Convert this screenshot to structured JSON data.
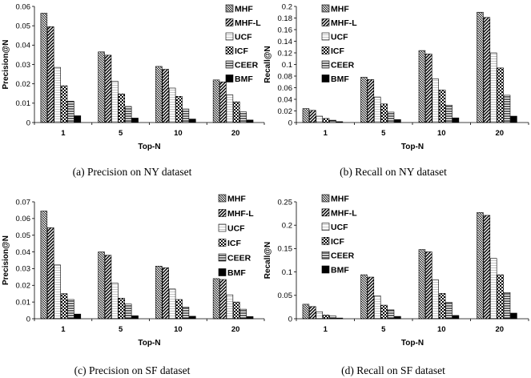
{
  "chart_data": [
    {
      "type": "bar",
      "caption": "(a)  Precision on NY dataset",
      "xlabel": "Top-N",
      "ylabel": "Precision@N",
      "categories": [
        "1",
        "5",
        "10",
        "20"
      ],
      "ylim": [
        0,
        0.06
      ],
      "yticks": [
        "0",
        "0.01",
        "0.02",
        "0.03",
        "0.04",
        "0.05",
        "0.06"
      ],
      "grid": false,
      "legend": "top-right",
      "series": [
        {
          "name": "MHF",
          "values": [
            0.0565,
            0.0365,
            0.029,
            0.022
          ]
        },
        {
          "name": "MHF-L",
          "values": [
            0.0495,
            0.0348,
            0.0275,
            0.021
          ]
        },
        {
          "name": "UCF",
          "values": [
            0.0285,
            0.0213,
            0.0178,
            0.0143
          ]
        },
        {
          "name": "ICF",
          "values": [
            0.019,
            0.0148,
            0.0135,
            0.0107
          ]
        },
        {
          "name": "CEER",
          "values": [
            0.011,
            0.0083,
            0.007,
            0.0055
          ]
        },
        {
          "name": "BMF",
          "values": [
            0.0035,
            0.0023,
            0.0018,
            0.0013
          ]
        }
      ]
    },
    {
      "type": "bar",
      "caption": "(b)  Recall on NY dataset",
      "xlabel": "Top-N",
      "ylabel": "Recall@N",
      "categories": [
        "1",
        "5",
        "10",
        "20"
      ],
      "ylim": [
        0,
        0.2
      ],
      "yticks": [
        "0",
        "0.02",
        "0.04",
        "0.06",
        "0.08",
        "0.1",
        "0.12",
        "0.14",
        "0.16",
        "0.18",
        "0.2"
      ],
      "grid": false,
      "legend": "top-right",
      "series": [
        {
          "name": "MHF",
          "values": [
            0.024,
            0.078,
            0.124,
            0.19
          ]
        },
        {
          "name": "MHF-L",
          "values": [
            0.021,
            0.074,
            0.118,
            0.181
          ]
        },
        {
          "name": "UCF",
          "values": [
            0.011,
            0.044,
            0.075,
            0.12
          ]
        },
        {
          "name": "ICF",
          "values": [
            0.007,
            0.032,
            0.056,
            0.094
          ]
        },
        {
          "name": "CEER",
          "values": [
            0.004,
            0.018,
            0.03,
            0.047
          ]
        },
        {
          "name": "BMF",
          "values": [
            0.0015,
            0.005,
            0.008,
            0.011
          ]
        }
      ]
    },
    {
      "type": "bar",
      "caption": "(c)  Precision on SF dataset",
      "xlabel": "Top-N",
      "ylabel": "Precision@N",
      "categories": [
        "1",
        "5",
        "10",
        "20"
      ],
      "ylim": [
        0,
        0.07
      ],
      "yticks": [
        "0",
        "0.01",
        "0.02",
        "0.03",
        "0.04",
        "0.05",
        "0.06",
        "0.07"
      ],
      "grid": false,
      "legend": "top-right",
      "series": [
        {
          "name": "MHF",
          "values": [
            0.0645,
            0.04,
            0.0315,
            0.024
          ]
        },
        {
          "name": "MHF-L",
          "values": [
            0.0545,
            0.038,
            0.0305,
            0.0235
          ]
        },
        {
          "name": "UCF",
          "values": [
            0.0322,
            0.0213,
            0.0178,
            0.0143
          ]
        },
        {
          "name": "ICF",
          "values": [
            0.015,
            0.0123,
            0.0115,
            0.01
          ]
        },
        {
          "name": "CEER",
          "values": [
            0.0115,
            0.0088,
            0.007,
            0.0057
          ]
        },
        {
          "name": "BMF",
          "values": [
            0.0028,
            0.0018,
            0.0015,
            0.0013
          ]
        }
      ]
    },
    {
      "type": "bar",
      "caption": "(d)  Recall on SF dataset",
      "xlabel": "Top-N",
      "ylabel": "Recall@N",
      "categories": [
        "1",
        "5",
        "10",
        "20"
      ],
      "ylim": [
        0,
        0.25
      ],
      "yticks": [
        "0",
        "0.05",
        "0.1",
        "0.15",
        "0.2",
        "0.25"
      ],
      "grid": false,
      "legend": "top-right",
      "series": [
        {
          "name": "MHF",
          "values": [
            0.031,
            0.094,
            0.148,
            0.227
          ]
        },
        {
          "name": "MHF-L",
          "values": [
            0.026,
            0.089,
            0.143,
            0.221
          ]
        },
        {
          "name": "UCF",
          "values": [
            0.015,
            0.049,
            0.083,
            0.129
          ]
        },
        {
          "name": "ICF",
          "values": [
            0.008,
            0.029,
            0.054,
            0.094
          ]
        },
        {
          "name": "CEER",
          "values": [
            0.006,
            0.019,
            0.035,
            0.056
          ]
        },
        {
          "name": "BMF",
          "values": [
            0.0015,
            0.005,
            0.007,
            0.012
          ]
        }
      ]
    }
  ]
}
